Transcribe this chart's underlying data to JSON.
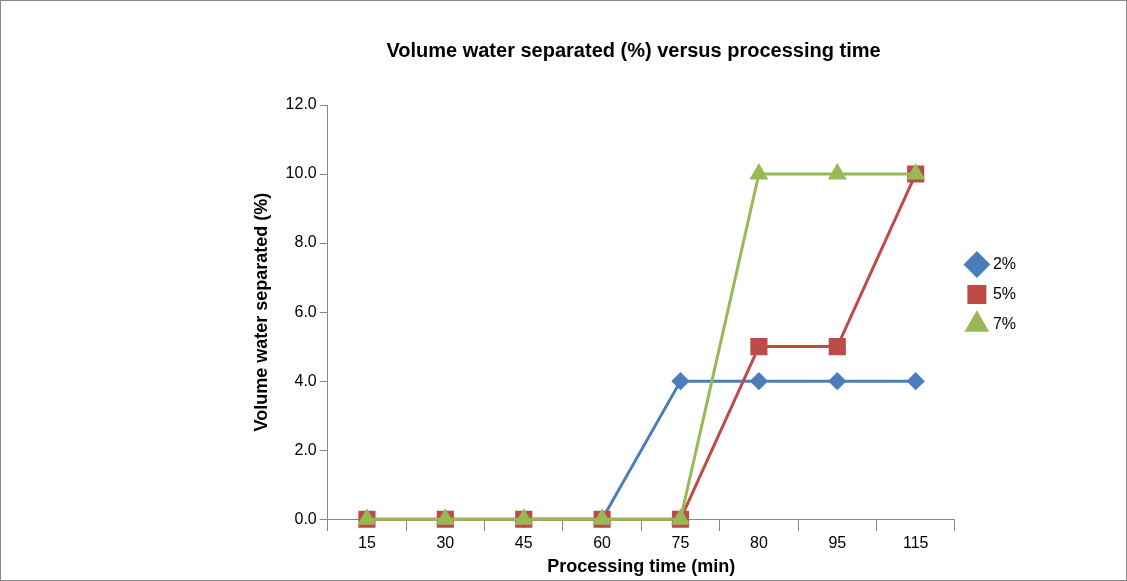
{
  "chart_data": {
    "type": "line",
    "title": "Volume water separated (%) versus processing time",
    "xlabel": "Processing time (min)",
    "ylabel": "Volume water separated (%)",
    "categories": [
      "15",
      "30",
      "45",
      "60",
      "75",
      "80",
      "95",
      "115"
    ],
    "series": [
      {
        "name": "2%",
        "color": "#4a7ebb",
        "marker": "diamond",
        "values": [
          null,
          null,
          0,
          0,
          4,
          4,
          4,
          4
        ]
      },
      {
        "name": "5%",
        "color": "#be4b48",
        "marker": "square",
        "values": [
          0,
          0,
          0,
          0,
          0,
          5,
          5,
          10
        ]
      },
      {
        "name": "7%",
        "color": "#98b954",
        "marker": "triangle",
        "values": [
          0,
          0,
          0,
          0,
          0,
          10,
          10,
          10
        ]
      }
    ],
    "ylim": [
      0,
      12
    ],
    "yticks": [
      {
        "value": 0,
        "label": "0.0"
      },
      {
        "value": 2,
        "label": "2.0"
      },
      {
        "value": 4,
        "label": "4.0"
      },
      {
        "value": 6,
        "label": "6.0"
      },
      {
        "value": 8,
        "label": "8.0"
      },
      {
        "value": 10,
        "label": "10.0"
      },
      {
        "value": 12,
        "label": "12.0"
      }
    ],
    "grid": false,
    "legend": "right",
    "line_style": "solid"
  }
}
